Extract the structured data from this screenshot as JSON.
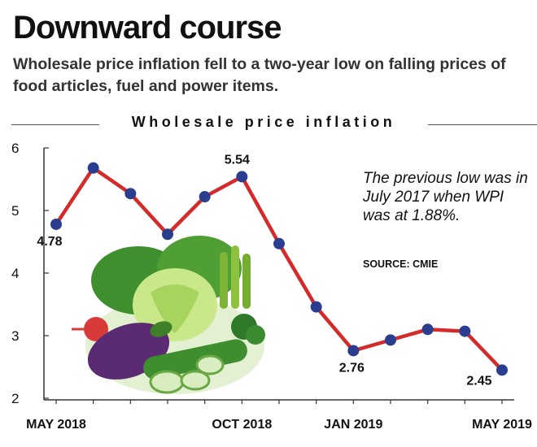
{
  "headline": "Downward course",
  "deck": "Wholesale price inflation fell to a two-year low on falling prices of food articles, fuel and power items.",
  "annotation": "The previous low was in July 2017 when WPI was at 1.88%.",
  "source": "SOURCE: CMIE",
  "colors": {
    "line": "#d42a2a",
    "marker": "#2b3d8f",
    "axis": "#333333"
  },
  "illustration": "vegetables",
  "chart_data": {
    "type": "line",
    "title": "Wholesale price inflation",
    "xlabel": "",
    "ylabel": "",
    "x": [
      "May 2018",
      "Jun 2018",
      "Jul 2018",
      "Aug 2018",
      "Sep 2018",
      "Oct 2018",
      "Nov 2018",
      "Dec 2018",
      "Jan 2019",
      "Feb 2019",
      "Mar 2019",
      "Apr 2019",
      "May 2019"
    ],
    "x_tick_labels": [
      "MAY 2018",
      "OCT 2018",
      "JAN 2019",
      "MAY 2019"
    ],
    "x_tick_positions": [
      "May 2018",
      "Oct 2018",
      "Jan 2019",
      "May 2019"
    ],
    "y_ticks": [
      2,
      3,
      4,
      5,
      6
    ],
    "ylim": [
      2,
      6
    ],
    "series": [
      {
        "values": [
          4.78,
          5.68,
          5.27,
          4.62,
          5.22,
          5.54,
          4.47,
          3.46,
          2.76,
          2.93,
          3.1,
          3.07,
          2.45
        ]
      }
    ],
    "data_labels": [
      {
        "index": 0,
        "text": "4.78"
      },
      {
        "index": 5,
        "text": "5.54"
      },
      {
        "index": 8,
        "text": "2.76"
      },
      {
        "index": 12,
        "text": "2.45"
      }
    ],
    "grid": false
  }
}
